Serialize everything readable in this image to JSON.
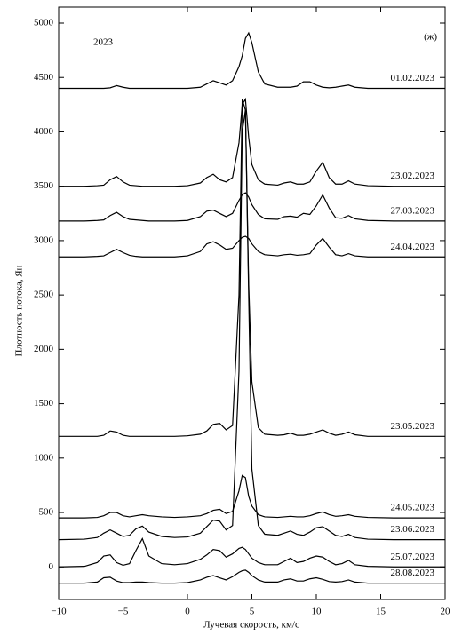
{
  "chart_data": {
    "type": "line",
    "xlabel": "Лучевая скорость, км/с",
    "ylabel": "Плотность потока, Ян",
    "annotations": [
      "2023",
      "(ж)"
    ],
    "xlim": [
      -10,
      20
    ],
    "ylim": [
      -300,
      5000
    ],
    "xticks": [
      {
        "value": -10,
        "label": "−10"
      },
      {
        "value": -5,
        "label": "−5"
      },
      0,
      5,
      10,
      15,
      20
    ],
    "yticks": [
      0,
      500,
      1000,
      1500,
      2000,
      2500,
      3000,
      3500,
      4000,
      4500,
      5000
    ],
    "grid": false,
    "x": [
      -10,
      -8,
      -7,
      -6.5,
      -6,
      -5.5,
      -5,
      -4.5,
      -4,
      -3.5,
      -3,
      -2,
      -1,
      0,
      1,
      1.5,
      2,
      2.5,
      3,
      3.5,
      4,
      4.25,
      4.5,
      4.75,
      5,
      5.5,
      6,
      7,
      7.5,
      8,
      8.5,
      9,
      9.5,
      10,
      10.5,
      11,
      11.5,
      12,
      12.5,
      13,
      14,
      16,
      18,
      20
    ],
    "series": [
      {
        "name": "01.02.2023",
        "color": "#000000",
        "values": [
          4400,
          4400,
          4400,
          4400,
          4405,
          4425,
          4410,
          4400,
          4400,
          4400,
          4400,
          4400,
          4400,
          4400,
          4410,
          4440,
          4470,
          4450,
          4430,
          4470,
          4600,
          4700,
          4860,
          4910,
          4820,
          4550,
          4440,
          4410,
          4410,
          4410,
          4420,
          4460,
          4460,
          4430,
          4410,
          4405,
          4410,
          4420,
          4430,
          4410,
          4400,
          4400,
          4400,
          4400
        ]
      },
      {
        "name": "23.02.2023",
        "color": "#000000",
        "values": [
          3500,
          3500,
          3505,
          3510,
          3560,
          3590,
          3540,
          3510,
          3505,
          3500,
          3500,
          3500,
          3500,
          3505,
          3530,
          3580,
          3610,
          3560,
          3540,
          3580,
          3900,
          4250,
          4300,
          3950,
          3700,
          3560,
          3520,
          3510,
          3530,
          3540,
          3520,
          3520,
          3540,
          3640,
          3720,
          3580,
          3520,
          3520,
          3550,
          3520,
          3505,
          3500,
          3500,
          3500
        ]
      },
      {
        "name": "27.03.2023",
        "color": "#000000",
        "values": [
          3180,
          3180,
          3185,
          3190,
          3230,
          3260,
          3220,
          3195,
          3190,
          3185,
          3180,
          3180,
          3180,
          3185,
          3220,
          3270,
          3280,
          3250,
          3220,
          3250,
          3370,
          3420,
          3440,
          3400,
          3330,
          3240,
          3200,
          3195,
          3220,
          3225,
          3215,
          3250,
          3240,
          3320,
          3420,
          3300,
          3210,
          3205,
          3230,
          3200,
          3185,
          3180,
          3180,
          3180
        ]
      },
      {
        "name": "24.04.2023",
        "color": "#000000",
        "values": [
          2850,
          2850,
          2855,
          2860,
          2890,
          2920,
          2890,
          2865,
          2855,
          2850,
          2850,
          2850,
          2850,
          2860,
          2900,
          2970,
          2990,
          2960,
          2920,
          2930,
          3000,
          3030,
          3040,
          3020,
          2970,
          2900,
          2870,
          2860,
          2870,
          2875,
          2865,
          2870,
          2880,
          2960,
          3020,
          2940,
          2870,
          2860,
          2880,
          2860,
          2850,
          2850,
          2850,
          2850
        ]
      },
      {
        "name": "23.05.2023",
        "color": "#000000",
        "values": [
          1200,
          1200,
          1200,
          1210,
          1250,
          1240,
          1210,
          1200,
          1200,
          1200,
          1200,
          1200,
          1200,
          1205,
          1220,
          1250,
          1310,
          1320,
          1260,
          1300,
          2500,
          4300,
          4200,
          2600,
          1700,
          1280,
          1220,
          1210,
          1215,
          1230,
          1210,
          1210,
          1220,
          1240,
          1260,
          1230,
          1210,
          1220,
          1240,
          1215,
          1200,
          1200,
          1200,
          1200
        ]
      },
      {
        "name": "24.05.2023",
        "color": "#000000",
        "values": [
          450,
          450,
          455,
          470,
          500,
          500,
          470,
          460,
          470,
          480,
          470,
          460,
          455,
          460,
          470,
          490,
          520,
          530,
          490,
          510,
          700,
          840,
          820,
          650,
          560,
          480,
          460,
          455,
          460,
          465,
          460,
          460,
          470,
          490,
          505,
          480,
          465,
          470,
          480,
          465,
          455,
          450,
          450,
          450
        ]
      },
      {
        "name": "23.06.2023",
        "color": "#000000",
        "values": [
          250,
          255,
          270,
          310,
          340,
          310,
          280,
          290,
          350,
          375,
          320,
          280,
          270,
          275,
          310,
          370,
          430,
          420,
          340,
          380,
          1800,
          4000,
          4200,
          2500,
          900,
          380,
          300,
          290,
          310,
          330,
          300,
          290,
          320,
          360,
          370,
          330,
          290,
          280,
          300,
          270,
          255,
          250,
          250,
          250
        ]
      },
      {
        "name": "25.07.2023",
        "color": "#000000",
        "values": [
          0,
          5,
          40,
          100,
          110,
          40,
          15,
          30,
          150,
          260,
          100,
          30,
          20,
          30,
          70,
          110,
          160,
          150,
          90,
          120,
          170,
          180,
          160,
          120,
          80,
          40,
          20,
          20,
          50,
          80,
          40,
          50,
          80,
          100,
          90,
          50,
          20,
          30,
          60,
          20,
          5,
          0,
          0,
          0
        ]
      },
      {
        "name": "28.08.2023",
        "color": "#000000",
        "values": [
          -150,
          -150,
          -140,
          -100,
          -95,
          -130,
          -145,
          -145,
          -140,
          -140,
          -145,
          -150,
          -150,
          -145,
          -120,
          -95,
          -80,
          -100,
          -120,
          -90,
          -50,
          -35,
          -30,
          -50,
          -80,
          -120,
          -140,
          -140,
          -120,
          -110,
          -130,
          -130,
          -110,
          -100,
          -115,
          -135,
          -140,
          -135,
          -120,
          -140,
          -150,
          -150,
          -150,
          -150
        ]
      }
    ]
  }
}
